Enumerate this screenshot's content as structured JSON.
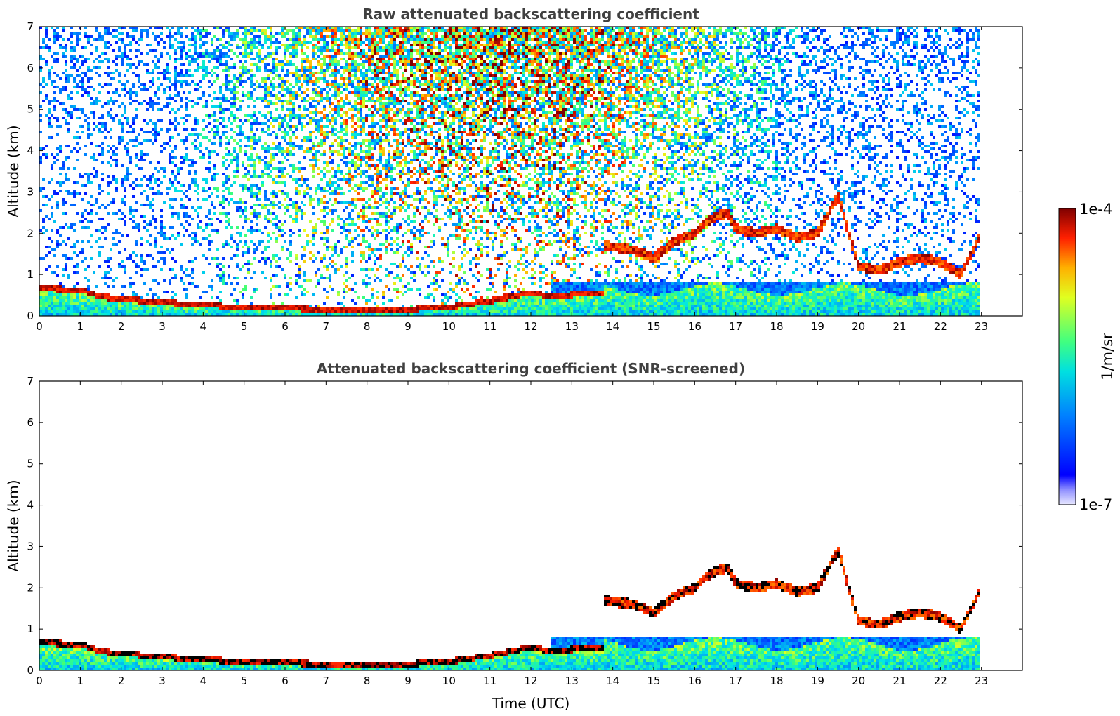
{
  "chart_data": [
    {
      "type": "heatmap",
      "title": "Raw attenuated backscattering coefficient",
      "xlabel": "",
      "ylabel": "Altitude (km)",
      "xlim": [
        0,
        24
      ],
      "ylim": [
        0,
        7
      ],
      "x_ticks": [
        0,
        1,
        2,
        3,
        4,
        5,
        6,
        7,
        8,
        9,
        10,
        11,
        12,
        13,
        14,
        15,
        16,
        17,
        18,
        19,
        20,
        21,
        22,
        23
      ],
      "y_ticks": [
        0,
        1,
        2,
        3,
        4,
        5,
        6,
        7
      ],
      "data_extent_x": [
        0,
        23
      ],
      "boundary_layer_top_km": [
        [
          0,
          0.65
        ],
        [
          1,
          0.62
        ],
        [
          1.5,
          0.45
        ],
        [
          2,
          0.4
        ],
        [
          3,
          0.32
        ],
        [
          4,
          0.25
        ],
        [
          5,
          0.2
        ],
        [
          6,
          0.17
        ],
        [
          7,
          0.15
        ],
        [
          8,
          0.14
        ],
        [
          9,
          0.15
        ],
        [
          10,
          0.2
        ],
        [
          11,
          0.35
        ],
        [
          12,
          0.55
        ],
        [
          12.5,
          0.45
        ],
        [
          13,
          0.5
        ],
        [
          13.5,
          0.55
        ]
      ],
      "cloud_layers_km": [
        [
          13.8,
          1.7
        ],
        [
          14.5,
          1.6
        ],
        [
          15,
          1.4
        ],
        [
          15.5,
          1.8
        ],
        [
          16,
          2.0
        ],
        [
          16.3,
          2.3
        ],
        [
          16.8,
          2.5
        ],
        [
          17,
          2.1
        ],
        [
          17.5,
          2.0
        ],
        [
          18,
          2.1
        ],
        [
          18.5,
          1.9
        ],
        [
          19,
          2.0
        ],
        [
          19.5,
          2.9
        ],
        [
          20,
          1.2
        ],
        [
          20.5,
          1.1
        ],
        [
          21,
          1.3
        ],
        [
          21.5,
          1.4
        ],
        [
          22,
          1.3
        ],
        [
          22.5,
          1.0
        ],
        [
          23,
          2.0
        ]
      ]
    },
    {
      "type": "heatmap",
      "title": "Attenuated backscattering coefficient (SNR-screened)",
      "xlabel": "Time (UTC)",
      "ylabel": "Altitude (km)",
      "xlim": [
        0,
        24
      ],
      "ylim": [
        0,
        7
      ],
      "x_ticks": [
        0,
        1,
        2,
        3,
        4,
        5,
        6,
        7,
        8,
        9,
        10,
        11,
        12,
        13,
        14,
        15,
        16,
        17,
        18,
        19,
        20,
        21,
        22,
        23
      ],
      "y_ticks": [
        0,
        1,
        2,
        3,
        4,
        5,
        6,
        7
      ]
    }
  ],
  "colorbar": {
    "label": "1/m/sr",
    "max_label": "1e-4",
    "min_label": "1e-7",
    "scale": "log",
    "range": [
      1e-07,
      0.0001
    ],
    "colormap": "jet"
  }
}
